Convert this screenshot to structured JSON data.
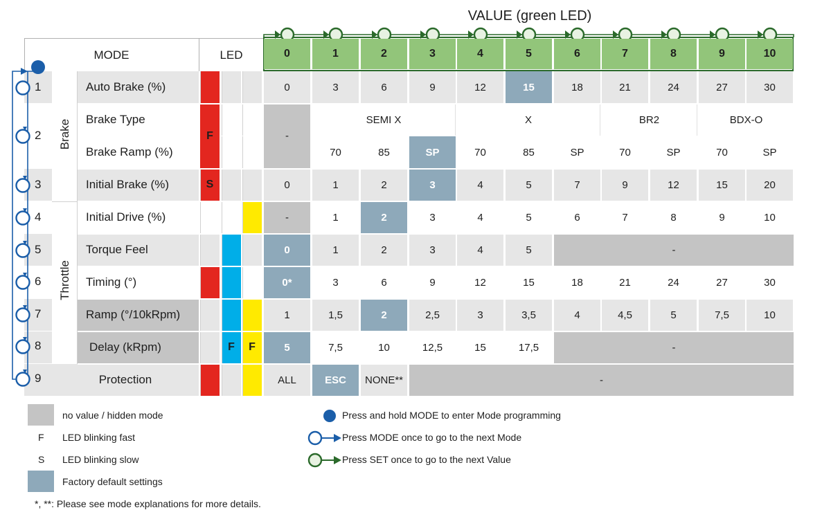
{
  "header": {
    "value_title": "VALUE (green LED)",
    "mode_label": "MODE",
    "led_label": "LED",
    "values": [
      "0",
      "1",
      "2",
      "3",
      "4",
      "5",
      "6",
      "7",
      "8",
      "9",
      "10"
    ]
  },
  "groups": {
    "brake": "Brake",
    "throttle": "Throttle"
  },
  "modes": [
    {
      "num": "1",
      "label": "Auto Brake (%)",
      "led": [
        "red",
        "",
        ""
      ],
      "led_text": [
        "",
        "",
        ""
      ],
      "cells": [
        {
          "t": "0",
          "c": "g"
        },
        {
          "t": "3",
          "c": "g"
        },
        {
          "t": "6",
          "c": "g"
        },
        {
          "t": "9",
          "c": "g"
        },
        {
          "t": "12",
          "c": "g"
        },
        {
          "t": "15",
          "c": "fd"
        },
        {
          "t": "18",
          "c": "g"
        },
        {
          "t": "21",
          "c": "g"
        },
        {
          "t": "24",
          "c": "g"
        },
        {
          "t": "27",
          "c": "g"
        },
        {
          "t": "30",
          "c": "g"
        }
      ]
    },
    {
      "num": "2",
      "label": "Brake Type",
      "led_text": [
        "F",
        "",
        ""
      ]
    },
    {
      "num": "",
      "label": "Brake Ramp (%)"
    },
    {
      "num": "3",
      "label": "Initial Brake (%)",
      "led_text": [
        "S",
        "",
        ""
      ],
      "cells": [
        {
          "t": "0",
          "c": "g"
        },
        {
          "t": "1",
          "c": "g"
        },
        {
          "t": "2",
          "c": "g"
        },
        {
          "t": "3",
          "c": "fd"
        },
        {
          "t": "4",
          "c": "g"
        },
        {
          "t": "5",
          "c": "g"
        },
        {
          "t": "7",
          "c": "g"
        },
        {
          "t": "9",
          "c": "g"
        },
        {
          "t": "12",
          "c": "g"
        },
        {
          "t": "15",
          "c": "g"
        },
        {
          "t": "20",
          "c": "g"
        }
      ]
    },
    {
      "num": "4",
      "label": "Initial Drive (%)",
      "cells": [
        {
          "t": "-",
          "c": "dk"
        },
        {
          "t": "1",
          "c": ""
        },
        {
          "t": "2",
          "c": "fd"
        },
        {
          "t": "3",
          "c": ""
        },
        {
          "t": "4",
          "c": ""
        },
        {
          "t": "5",
          "c": ""
        },
        {
          "t": "6",
          "c": ""
        },
        {
          "t": "7",
          "c": ""
        },
        {
          "t": "8",
          "c": ""
        },
        {
          "t": "9",
          "c": ""
        },
        {
          "t": "10",
          "c": ""
        }
      ]
    },
    {
      "num": "5",
      "label": "Torque Feel",
      "cells": [
        {
          "t": "0",
          "c": "fd"
        },
        {
          "t": "1",
          "c": "g"
        },
        {
          "t": "2",
          "c": "g"
        },
        {
          "t": "3",
          "c": "g"
        },
        {
          "t": "4",
          "c": "g"
        },
        {
          "t": "5",
          "c": "g"
        }
      ],
      "rest": "-"
    },
    {
      "num": "6",
      "label": "Timing (°)",
      "cells": [
        {
          "t": "0*",
          "c": "fd"
        },
        {
          "t": "3",
          "c": ""
        },
        {
          "t": "6",
          "c": ""
        },
        {
          "t": "9",
          "c": ""
        },
        {
          "t": "12",
          "c": ""
        },
        {
          "t": "15",
          "c": ""
        },
        {
          "t": "18",
          "c": ""
        },
        {
          "t": "21",
          "c": ""
        },
        {
          "t": "24",
          "c": ""
        },
        {
          "t": "27",
          "c": ""
        },
        {
          "t": "30",
          "c": ""
        }
      ]
    },
    {
      "num": "7",
      "label": "Ramp (°/10kRpm)",
      "cells": [
        {
          "t": "1",
          "c": "g"
        },
        {
          "t": "1,5",
          "c": "g"
        },
        {
          "t": "2",
          "c": "fd"
        },
        {
          "t": "2,5",
          "c": "g"
        },
        {
          "t": "3",
          "c": "g"
        },
        {
          "t": "3,5",
          "c": "g"
        },
        {
          "t": "4",
          "c": "g"
        },
        {
          "t": "4,5",
          "c": "g"
        },
        {
          "t": "5",
          "c": "g"
        },
        {
          "t": "7,5",
          "c": "g"
        },
        {
          "t": "10",
          "c": "g"
        }
      ]
    },
    {
      "num": "8",
      "label": "Delay (kRpm)",
      "led_text": [
        "",
        "F",
        "F"
      ],
      "cells": [
        {
          "t": "5",
          "c": "fd"
        },
        {
          "t": "7,5",
          "c": ""
        },
        {
          "t": "10",
          "c": ""
        },
        {
          "t": "12,5",
          "c": ""
        },
        {
          "t": "15",
          "c": ""
        },
        {
          "t": "17,5",
          "c": ""
        }
      ],
      "rest": "-"
    },
    {
      "num": "9",
      "label": "Protection",
      "cells": [
        {
          "t": "ALL",
          "c": "g"
        },
        {
          "t": "ESC",
          "c": "fd"
        },
        {
          "t": "NONE**",
          "c": "g"
        }
      ],
      "rest": "-"
    }
  ],
  "brake_type": {
    "semi_x": "SEMI X",
    "x": "X",
    "br2": "BR2",
    "bdx_o": "BDX-O",
    "dash": "-"
  },
  "brake_ramp": [
    "70",
    "85",
    "SP",
    "70",
    "85",
    "SP",
    "70",
    "SP",
    "70",
    "SP"
  ],
  "legend": {
    "hidden": "no value / hidden mode",
    "fast_key": "F",
    "fast": "LED blinking fast",
    "slow_key": "S",
    "slow": "LED blinking slow",
    "factory": "Factory default settings",
    "footnote": "*, **: Please see mode explanations for more details.",
    "hold_mode": "Press and hold MODE to enter Mode programming",
    "next_mode": "Press MODE once to go to the next Mode",
    "next_value": "Press SET once to go to the next Value"
  },
  "colors": {
    "red": "#e3261f",
    "blue": "#00aee8",
    "yellow": "#ffea00",
    "green": "#92c57a",
    "factory": "#8ea9ba",
    "hidden": "#c4c4c4",
    "row_gray": "#e6e6e6",
    "mode_blue": "#1b5ea9",
    "value_green": "#2b6a2b"
  }
}
